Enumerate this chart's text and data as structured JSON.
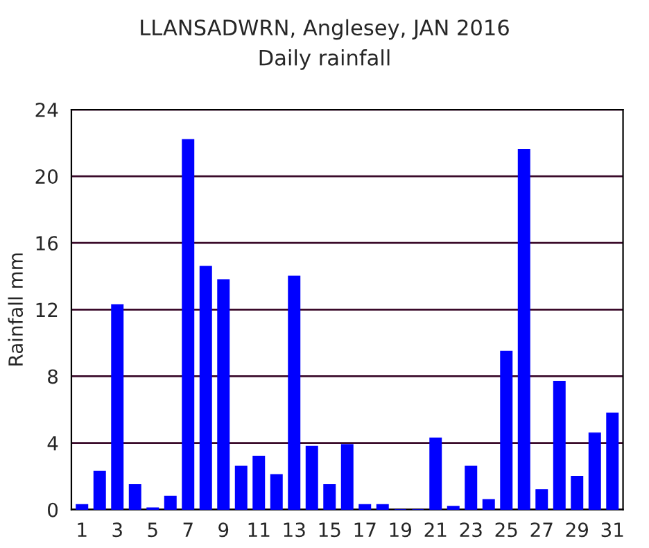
{
  "chart_data": {
    "type": "bar",
    "title": "LLANSADWRN, Anglesey, JAN 2016",
    "subtitle": "Daily rainfall",
    "ylabel": "Rainfall mm",
    "categories": [
      "1",
      null,
      "3",
      null,
      "5",
      null,
      "7",
      null,
      "9",
      null,
      "11",
      null,
      "13",
      null,
      "15",
      null,
      "17",
      null,
      "19",
      null,
      "21",
      null,
      "23",
      null,
      "25",
      null,
      "27",
      null,
      "29",
      null,
      "31"
    ],
    "values": [
      0.3,
      2.3,
      12.3,
      1.5,
      0.1,
      0.8,
      22.2,
      14.6,
      13.8,
      2.6,
      3.2,
      2.1,
      14.0,
      3.8,
      1.5,
      3.9,
      0.3,
      0.3,
      0,
      0,
      4.3,
      0.2,
      2.6,
      0.6,
      9.5,
      21.6,
      1.2,
      7.7,
      2.0,
      4.6,
      5.8
    ],
    "color": "#0000ff",
    "ylim": [
      0,
      24
    ],
    "yticks": [
      0,
      4,
      8,
      12,
      16,
      20,
      24
    ],
    "grid": "y"
  }
}
